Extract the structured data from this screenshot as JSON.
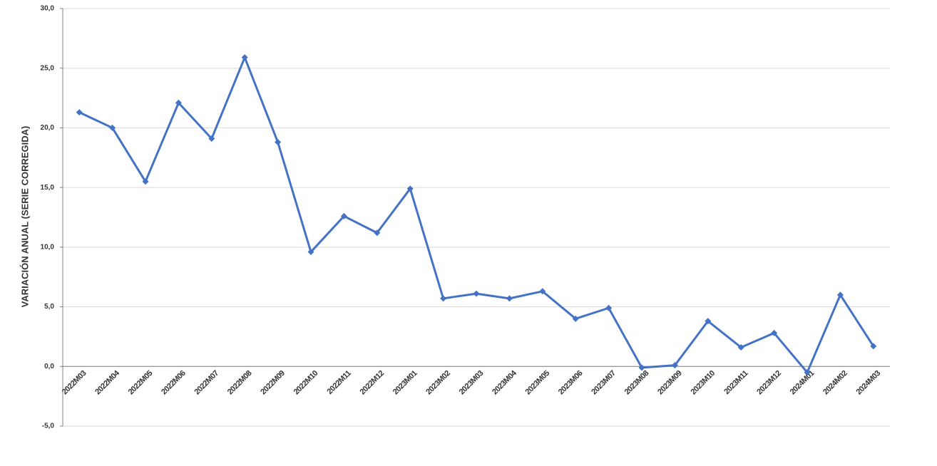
{
  "chart_data": {
    "type": "line",
    "y_label": "VARIACIÓN ANUAL (SERIE CORREGIDA)",
    "categories": [
      "2022M03",
      "2022M04",
      "2022M05",
      "2022M06",
      "2022M07",
      "2022M08",
      "2022M09",
      "2022M10",
      "2022M11",
      "2022M12",
      "2023M01",
      "2023M02",
      "2023M03",
      "2023M04",
      "2023M05",
      "2023M06",
      "2023M07",
      "2023M08",
      "2023M09",
      "2023M10",
      "2023M11",
      "2023M12",
      "2024M01",
      "2024M02",
      "2024M03"
    ],
    "series": [
      {
        "color": "#4472c4",
        "values": [
          21.3,
          20.0,
          15.5,
          22.1,
          19.1,
          25.9,
          18.8,
          9.6,
          12.6,
          11.2,
          14.9,
          5.7,
          6.1,
          5.7,
          6.3,
          4.0,
          4.9,
          -0.1,
          0.1,
          3.8,
          1.6,
          2.8,
          -0.5,
          6.0,
          1.7
        ]
      }
    ],
    "ylim": [
      -5,
      30
    ],
    "yticks": [
      {
        "value": -5,
        "label": "-5,0"
      },
      {
        "value": 0,
        "label": "0,0"
      },
      {
        "value": 5,
        "label": "5,0"
      },
      {
        "value": 10,
        "label": "10,0"
      },
      {
        "value": 15,
        "label": "15,0"
      },
      {
        "value": 20,
        "label": "20,0"
      },
      {
        "value": 25,
        "label": "25,0"
      },
      {
        "value": 30,
        "label": "30,0"
      }
    ],
    "grid": true
  }
}
